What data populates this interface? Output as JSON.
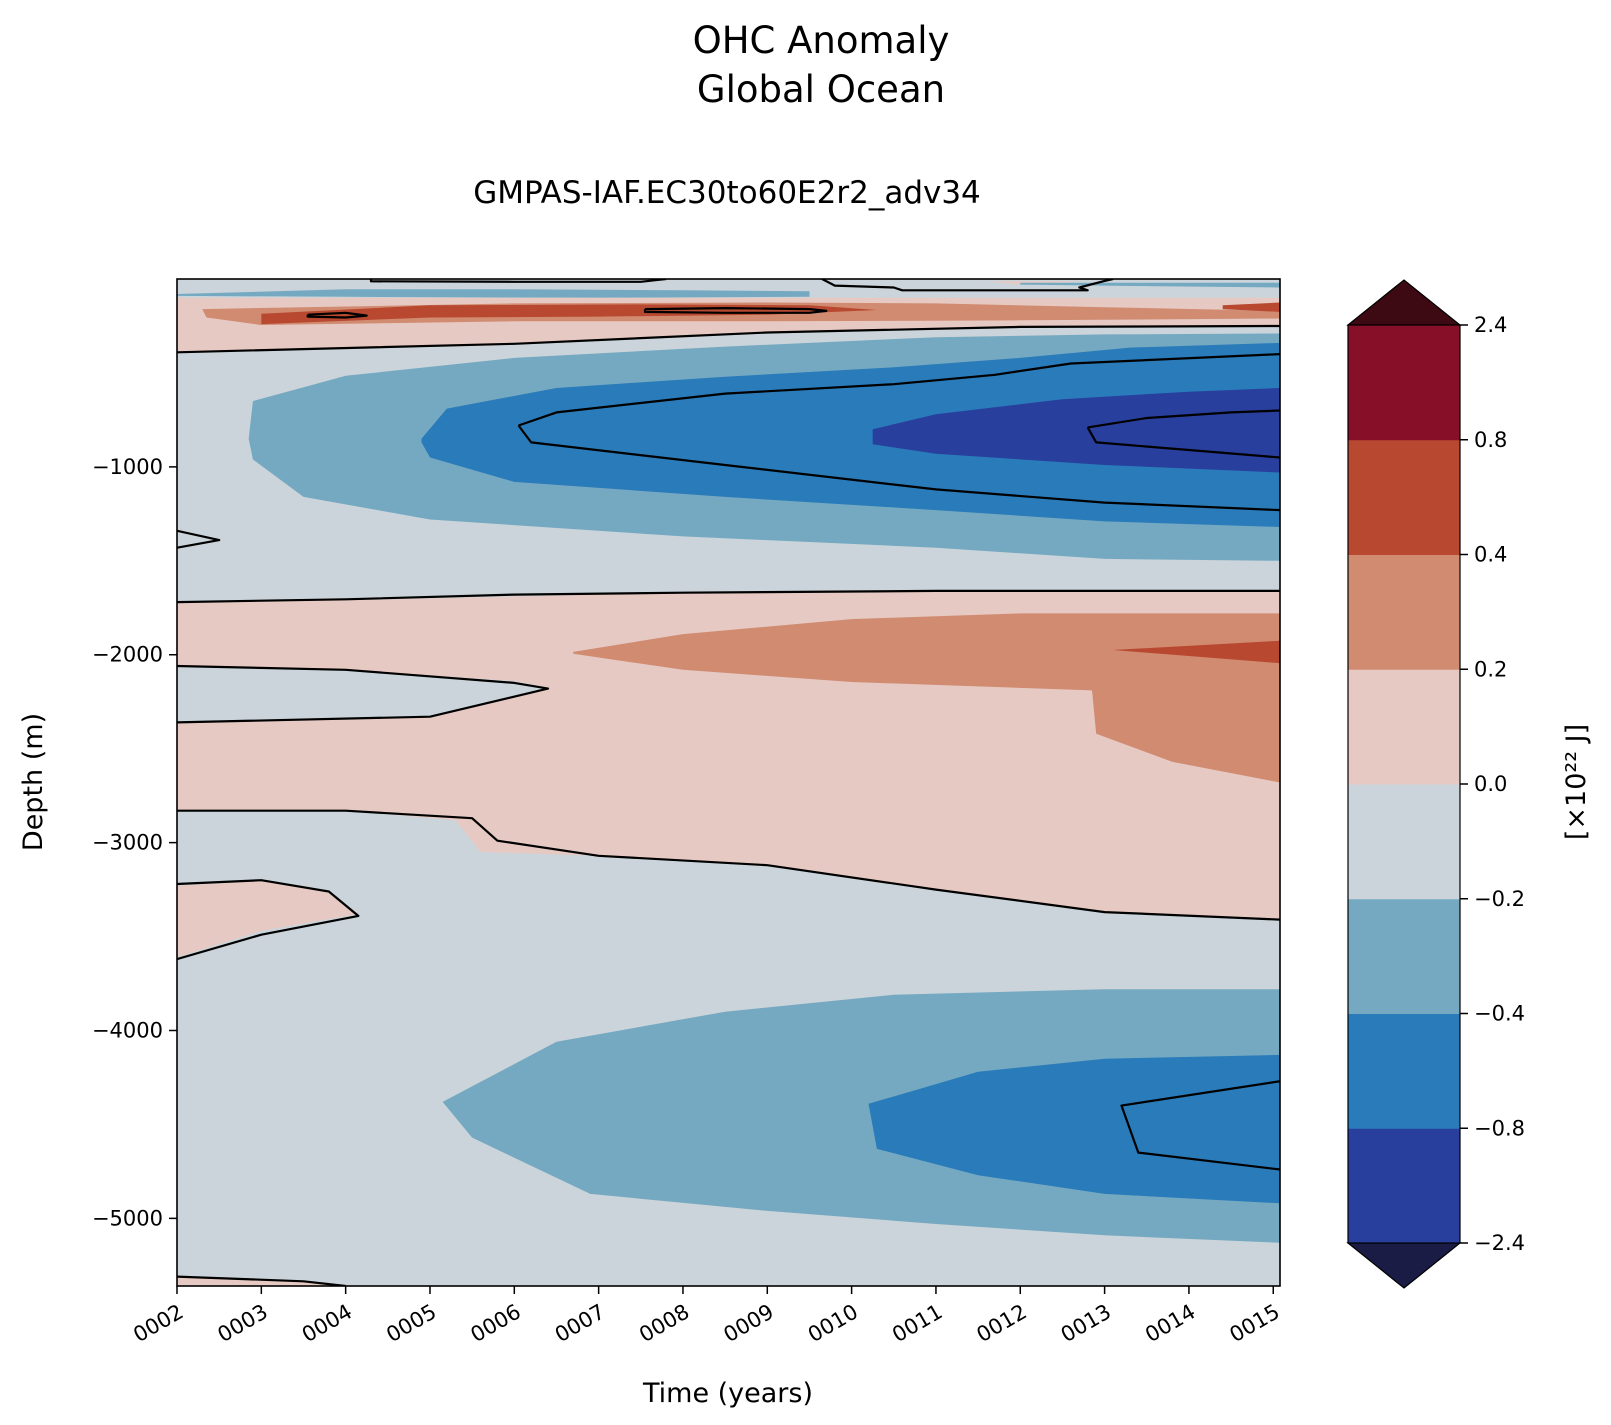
{
  "chart_data": {
    "type": "contourf",
    "title": "OHC Anomaly",
    "subtitle": "Global Ocean",
    "run_name": "GMPAS-IAF.EC30to60E2r2_adv34",
    "xlabel": "Time (years)",
    "ylabel": "Depth (m)",
    "x_ticks": [
      "0002",
      "0003",
      "0004",
      "0005",
      "0006",
      "0007",
      "0008",
      "0009",
      "0010",
      "0011",
      "0012",
      "0013",
      "0014",
      "0015"
    ],
    "xlim": [
      2.0,
      15.08
    ],
    "y_ticks": [
      -1000,
      -2000,
      -3000,
      -4000,
      -5000
    ],
    "y_tick_labels": [
      "−1000",
      "−2000",
      "−3000",
      "−4000",
      "−5000"
    ],
    "ylim": [
      -5360,
      0
    ],
    "colorbar": {
      "label": "[×10²² J]",
      "levels": [
        -2.4,
        -0.8,
        -0.4,
        -0.2,
        0.0,
        0.2,
        0.4,
        0.8,
        2.4
      ],
      "level_labels": [
        "−2.4",
        "−0.8",
        "−0.4",
        "−0.2",
        "0.0",
        "0.2",
        "0.4",
        "0.8",
        "2.4"
      ],
      "colors": [
        "#283f9e",
        "#2a7bba",
        "#75a9c1",
        "#cbd4da",
        "#e6c9c2",
        "#d08b71",
        "#b84830",
        "#870f27"
      ],
      "extend_min_color": "#1a1c45",
      "extend_max_color": "#3d0a14"
    },
    "filled_regions": [
      {
        "level": "-0.2..0.0",
        "pts": [
          [
            2.0,
            0
          ],
          [
            15.08,
            0
          ],
          [
            15.08,
            -5360
          ],
          [
            2.0,
            -5360
          ]
        ]
      },
      {
        "level": "-0.4..-0.2",
        "pts": [
          [
            2.0,
            -80
          ],
          [
            4.0,
            -55
          ],
          [
            6.0,
            -55
          ],
          [
            8.0,
            -60
          ],
          [
            9.5,
            -65
          ],
          [
            9.5,
            -95
          ],
          [
            7.0,
            -100
          ],
          [
            4.0,
            -95
          ],
          [
            2.0,
            -90
          ]
        ]
      },
      {
        "level": "0.0..0.2",
        "pts": [
          [
            2.0,
            -100
          ],
          [
            15.08,
            -100
          ],
          [
            15.08,
            -250
          ],
          [
            12.0,
            -255
          ],
          [
            9.0,
            -280
          ],
          [
            6.0,
            -340
          ],
          [
            2.0,
            -390
          ]
        ]
      },
      {
        "level": "0.2..0.4",
        "pts": [
          [
            2.3,
            -160
          ],
          [
            6.0,
            -130
          ],
          [
            9.0,
            -125
          ],
          [
            11.0,
            -130
          ],
          [
            13.0,
            -150
          ],
          [
            15.08,
            -170
          ],
          [
            15.08,
            -210
          ],
          [
            12.0,
            -220
          ],
          [
            9.0,
            -225
          ],
          [
            6.0,
            -225
          ],
          [
            3.0,
            -245
          ],
          [
            2.35,
            -205
          ]
        ]
      },
      {
        "level": "0.4..0.8",
        "pts": [
          [
            3.0,
            -185
          ],
          [
            5.0,
            -140
          ],
          [
            7.5,
            -135
          ],
          [
            9.5,
            -140
          ],
          [
            10.3,
            -165
          ],
          [
            9.0,
            -190
          ],
          [
            7.0,
            -200
          ],
          [
            5.0,
            -205
          ],
          [
            3.0,
            -240
          ]
        ]
      },
      {
        "level": "0.4..0.8",
        "pts": [
          [
            14.4,
            -140
          ],
          [
            15.08,
            -125
          ],
          [
            15.08,
            -175
          ],
          [
            14.4,
            -160
          ]
        ]
      },
      {
        "level": "0.0..0.2",
        "pts": [
          [
            11.6,
            -12
          ],
          [
            12.8,
            -12
          ],
          [
            12.0,
            -30
          ]
        ]
      },
      {
        "level": "-0.4..-0.2",
        "pts": [
          [
            12.0,
            -20
          ],
          [
            15.08,
            -20
          ],
          [
            15.08,
            -45
          ],
          [
            13.5,
            -38
          ],
          [
            12.0,
            -30
          ]
        ]
      },
      {
        "level": "-0.4..-0.2",
        "pts": [
          [
            2.9,
            -650
          ],
          [
            4.0,
            -515
          ],
          [
            6.0,
            -420
          ],
          [
            8.5,
            -360
          ],
          [
            11.0,
            -310
          ],
          [
            13.0,
            -295
          ],
          [
            15.08,
            -290
          ],
          [
            15.08,
            -1500
          ],
          [
            13.0,
            -1490
          ],
          [
            11.0,
            -1430
          ],
          [
            8.0,
            -1370
          ],
          [
            5.0,
            -1280
          ],
          [
            3.5,
            -1160
          ],
          [
            2.9,
            -960
          ],
          [
            2.85,
            -850
          ]
        ]
      },
      {
        "level": "-0.8..-0.4",
        "pts": [
          [
            4.9,
            -850
          ],
          [
            5.2,
            -690
          ],
          [
            6.5,
            -580
          ],
          [
            8.5,
            -520
          ],
          [
            10.5,
            -470
          ],
          [
            12.0,
            -420
          ],
          [
            13.3,
            -365
          ],
          [
            15.08,
            -340
          ],
          [
            15.08,
            -1320
          ],
          [
            13.0,
            -1290
          ],
          [
            11.0,
            -1230
          ],
          [
            8.5,
            -1160
          ],
          [
            6.0,
            -1080
          ],
          [
            5.0,
            -950
          ],
          [
            4.9,
            -870
          ]
        ]
      },
      {
        "level": "-2.4..-0.8",
        "pts": [
          [
            10.25,
            -800
          ],
          [
            11.0,
            -720
          ],
          [
            12.5,
            -640
          ],
          [
            14.0,
            -600
          ],
          [
            15.08,
            -580
          ],
          [
            15.08,
            -1030
          ],
          [
            13.0,
            -990
          ],
          [
            11.0,
            -930
          ],
          [
            10.25,
            -880
          ]
        ]
      },
      {
        "level": "0.0..0.2",
        "pts": [
          [
            2.0,
            -1720
          ],
          [
            4.0,
            -1710
          ],
          [
            6.0,
            -1690
          ],
          [
            8.0,
            -1670
          ],
          [
            11.0,
            -1660
          ],
          [
            13.0,
            -1660
          ],
          [
            15.08,
            -1660
          ],
          [
            15.08,
            -3410
          ],
          [
            13.0,
            -3375
          ],
          [
            11.0,
            -3250
          ],
          [
            9.0,
            -3120
          ],
          [
            7.0,
            -3070
          ],
          [
            5.6,
            -3050
          ],
          [
            5.3,
            -2880
          ],
          [
            4.0,
            -2830
          ],
          [
            2.0,
            -2830
          ]
        ]
      },
      {
        "level": "-0.2..0.0",
        "pts": [
          [
            2.0,
            -2060
          ],
          [
            4.0,
            -2080
          ],
          [
            6.0,
            -2140
          ],
          [
            6.4,
            -2175
          ],
          [
            5.0,
            -2330
          ],
          [
            2.0,
            -2360
          ]
        ]
      },
      {
        "level": "0.2..0.4",
        "pts": [
          [
            6.7,
            -1985
          ],
          [
            8.0,
            -1890
          ],
          [
            10.0,
            -1810
          ],
          [
            12.0,
            -1780
          ],
          [
            15.08,
            -1780
          ],
          [
            15.08,
            -2680
          ],
          [
            13.8,
            -2570
          ],
          [
            12.9,
            -2420
          ],
          [
            12.85,
            -2190
          ],
          [
            10.0,
            -2145
          ],
          [
            8.0,
            -2080
          ],
          [
            6.7,
            -1995
          ]
        ]
      },
      {
        "level": "0.4..0.8",
        "pts": [
          [
            13.1,
            -1975
          ],
          [
            15.08,
            -1925
          ],
          [
            15.08,
            -2045
          ]
        ]
      },
      {
        "level": "0.0..0.2",
        "pts": [
          [
            2.0,
            -3230
          ],
          [
            3.0,
            -3205
          ],
          [
            3.8,
            -3260
          ],
          [
            4.15,
            -3380
          ],
          [
            3.0,
            -3470
          ],
          [
            2.0,
            -3610
          ]
        ]
      },
      {
        "level": "-0.4..-0.2",
        "pts": [
          [
            5.15,
            -4380
          ],
          [
            6.5,
            -4060
          ],
          [
            8.5,
            -3900
          ],
          [
            10.5,
            -3810
          ],
          [
            13.0,
            -3780
          ],
          [
            15.08,
            -3780
          ],
          [
            15.08,
            -5130
          ],
          [
            13.0,
            -5090
          ],
          [
            11.0,
            -5030
          ],
          [
            9.0,
            -4960
          ],
          [
            6.9,
            -4870
          ],
          [
            5.5,
            -4570
          ]
        ]
      },
      {
        "level": "-0.8..-0.4",
        "pts": [
          [
            10.2,
            -4390
          ],
          [
            11.5,
            -4220
          ],
          [
            13.0,
            -4150
          ],
          [
            15.08,
            -4130
          ],
          [
            15.08,
            -4920
          ],
          [
            13.0,
            -4870
          ],
          [
            11.5,
            -4770
          ],
          [
            10.3,
            -4630
          ]
        ]
      },
      {
        "level": "0.0..0.2",
        "pts": [
          [
            2.0,
            -5310
          ],
          [
            3.5,
            -5335
          ],
          [
            4.0,
            -5360
          ],
          [
            2.0,
            -5360
          ]
        ]
      }
    ],
    "zero_contours": [
      {
        "pts": [
          [
            4.3,
            0
          ],
          [
            4.3,
            -12
          ],
          [
            6.0,
            -15
          ],
          [
            7.5,
            -15
          ],
          [
            7.7,
            -5
          ],
          [
            7.8,
            0
          ]
        ]
      },
      {
        "pts": [
          [
            9.65,
            0
          ],
          [
            9.8,
            -35
          ],
          [
            10.5,
            -45
          ],
          [
            10.6,
            -60
          ],
          [
            12.8,
            -60
          ],
          [
            12.7,
            -45
          ],
          [
            13.0,
            -10
          ],
          [
            13.1,
            0
          ]
        ]
      },
      {
        "pts": [
          [
            2.0,
            -390
          ],
          [
            6.0,
            -345
          ],
          [
            9.0,
            -285
          ],
          [
            12.0,
            -255
          ],
          [
            15.08,
            -250
          ]
        ]
      },
      {
        "pts": [
          [
            2.0,
            -1430
          ],
          [
            2.5,
            -1390
          ],
          [
            2.0,
            -1340
          ]
        ]
      },
      {
        "pts": [
          [
            2.0,
            -1720
          ],
          [
            4.0,
            -1705
          ],
          [
            6.0,
            -1680
          ],
          [
            8.0,
            -1670
          ],
          [
            11.0,
            -1660
          ],
          [
            13.0,
            -1660
          ],
          [
            15.08,
            -1660
          ]
        ]
      },
      {
        "pts": [
          [
            2.0,
            -2060
          ],
          [
            4.0,
            -2080
          ],
          [
            6.0,
            -2150
          ],
          [
            6.4,
            -2180
          ],
          [
            5.0,
            -2330
          ],
          [
            2.0,
            -2360
          ]
        ]
      },
      {
        "pts": [
          [
            2.0,
            -2830
          ],
          [
            4.0,
            -2830
          ],
          [
            5.5,
            -2870
          ],
          [
            5.8,
            -2990
          ],
          [
            7.0,
            -3070
          ],
          [
            9.0,
            -3120
          ],
          [
            11.0,
            -3250
          ],
          [
            13.0,
            -3370
          ],
          [
            15.08,
            -3410
          ]
        ]
      },
      {
        "pts": [
          [
            2.0,
            -3220
          ],
          [
            3.0,
            -3200
          ],
          [
            3.8,
            -3260
          ],
          [
            4.15,
            -3390
          ],
          [
            3.0,
            -3490
          ],
          [
            2.0,
            -3620
          ]
        ]
      },
      {
        "pts": [
          [
            2.0,
            -5310
          ],
          [
            3.5,
            -5335
          ],
          [
            4.0,
            -5360
          ]
        ]
      }
    ],
    "other_contours": [
      {
        "pts": [
          [
            3.55,
            -190
          ],
          [
            4.0,
            -180
          ],
          [
            4.25,
            -195
          ],
          [
            4.0,
            -205
          ],
          [
            3.55,
            -200
          ],
          [
            3.55,
            -190
          ]
        ]
      },
      {
        "pts": [
          [
            7.55,
            -160
          ],
          [
            8.5,
            -155
          ],
          [
            9.5,
            -160
          ],
          [
            9.7,
            -170
          ],
          [
            9.5,
            -180
          ],
          [
            8.5,
            -180
          ],
          [
            7.55,
            -175
          ],
          [
            7.55,
            -160
          ]
        ]
      },
      {
        "pts": [
          [
            6.05,
            -780
          ],
          [
            6.5,
            -710
          ],
          [
            8.5,
            -610
          ],
          [
            10.5,
            -560
          ],
          [
            11.7,
            -510
          ],
          [
            12.6,
            -450
          ],
          [
            15.08,
            -400
          ]
        ]
      },
      {
        "pts": [
          [
            6.05,
            -780
          ],
          [
            6.2,
            -870
          ],
          [
            8.5,
            -990
          ],
          [
            11.0,
            -1120
          ],
          [
            13.0,
            -1190
          ],
          [
            15.08,
            -1230
          ]
        ]
      },
      {
        "pts": [
          [
            12.8,
            -790
          ],
          [
            13.5,
            -740
          ],
          [
            14.5,
            -710
          ],
          [
            15.08,
            -700
          ]
        ]
      },
      {
        "pts": [
          [
            12.8,
            -790
          ],
          [
            12.9,
            -870
          ],
          [
            14.0,
            -910
          ],
          [
            15.08,
            -950
          ]
        ]
      },
      {
        "pts": [
          [
            15.08,
            -4270
          ],
          [
            13.2,
            -4400
          ],
          [
            13.4,
            -4650
          ],
          [
            15.08,
            -4740
          ]
        ]
      }
    ]
  }
}
